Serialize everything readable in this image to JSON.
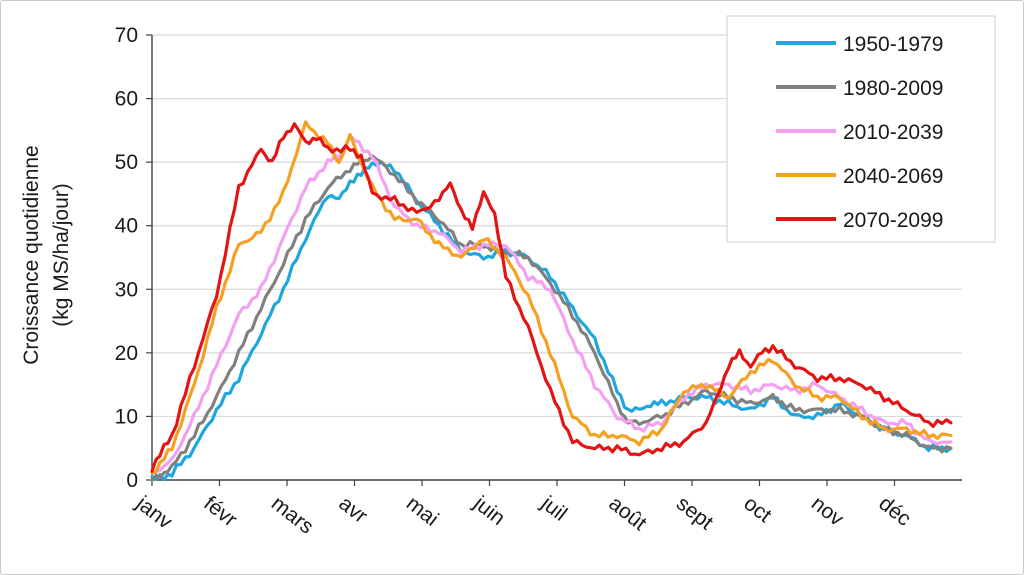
{
  "chart_data": {
    "type": "line",
    "title": "",
    "xlabel": "",
    "ylabel_line1": "Croissance quotidienne",
    "ylabel_line2": "(kg MS/ha/jour)",
    "ylim": [
      0,
      70
    ],
    "yticks": [
      0,
      10,
      20,
      30,
      40,
      50,
      60,
      70
    ],
    "months": [
      "janv",
      "févr",
      "mars",
      "avr",
      "mai",
      "juin",
      "juil",
      "août",
      "sept",
      "oct",
      "nov",
      "déc"
    ],
    "x_unit": "day of year",
    "xlim": [
      1,
      365
    ],
    "grid": "horizontal",
    "legend_position": "top-right",
    "series": [
      {
        "name": "1950-1979",
        "color": "#1ea7dc",
        "x": [
          1,
          10,
          20,
          30,
          40,
          50,
          60,
          70,
          80,
          85,
          90,
          95,
          100,
          110,
          120,
          130,
          140,
          150,
          160,
          170,
          180,
          190,
          200,
          210,
          215,
          220,
          225,
          230,
          240,
          250,
          260,
          270,
          280,
          290,
          300,
          310,
          320,
          330,
          340,
          350,
          360
        ],
        "y": [
          0,
          1,
          5,
          11,
          16,
          23,
          30,
          38,
          45,
          44,
          47,
          48,
          50,
          49,
          44,
          40,
          36,
          35,
          36,
          35,
          32,
          27,
          22,
          14,
          11,
          11,
          12,
          12,
          13,
          13,
          12,
          11,
          13,
          10,
          10,
          12,
          10,
          8,
          7,
          5,
          5
        ]
      },
      {
        "name": "1980-2009",
        "color": "#808080",
        "x": [
          1,
          10,
          20,
          30,
          40,
          50,
          60,
          70,
          80,
          90,
          95,
          100,
          110,
          120,
          130,
          140,
          150,
          155,
          160,
          170,
          180,
          190,
          200,
          210,
          215,
          220,
          230,
          240,
          250,
          260,
          270,
          280,
          290,
          300,
          310,
          320,
          330,
          340,
          350,
          360
        ],
        "y": [
          0,
          2,
          7,
          13,
          20,
          27,
          34,
          41,
          46,
          49,
          50,
          51,
          48,
          44,
          41,
          37,
          37,
          36,
          36,
          35,
          31,
          26,
          20,
          12,
          9,
          9,
          10,
          12,
          14,
          13,
          12,
          13,
          11,
          11,
          11,
          10,
          8,
          7,
          5,
          5
        ]
      },
      {
        "name": "2010-2039",
        "color": "#f4a0f2",
        "x": [
          1,
          10,
          20,
          30,
          40,
          50,
          60,
          70,
          80,
          85,
          90,
          100,
          110,
          120,
          130,
          140,
          150,
          160,
          170,
          180,
          190,
          200,
          210,
          220,
          230,
          240,
          250,
          260,
          270,
          280,
          290,
          300,
          310,
          320,
          330,
          340,
          350,
          360
        ],
        "y": [
          1,
          3,
          10,
          18,
          26,
          30,
          38,
          46,
          50,
          51,
          54,
          51,
          43,
          40,
          39,
          36,
          37,
          37,
          32,
          30,
          22,
          15,
          10,
          8,
          9,
          13,
          15,
          15,
          14,
          15,
          14,
          15,
          13,
          11,
          9,
          9,
          6,
          6
        ]
      },
      {
        "name": "2040-2069",
        "color": "#f5a022",
        "x": [
          1,
          10,
          20,
          30,
          40,
          50,
          60,
          70,
          80,
          85,
          90,
          100,
          110,
          120,
          130,
          140,
          150,
          160,
          170,
          180,
          190,
          200,
          210,
          220,
          230,
          240,
          250,
          260,
          270,
          280,
          290,
          300,
          310,
          320,
          330,
          340,
          350,
          360
        ],
        "y": [
          1,
          5,
          15,
          27,
          37,
          39,
          45,
          56,
          53,
          50,
          54,
          46,
          41,
          41,
          37,
          35,
          38,
          35,
          29,
          20,
          10,
          7,
          7,
          6,
          8,
          14,
          15,
          13,
          17,
          19,
          15,
          13,
          13,
          10,
          8,
          8,
          7,
          7
        ]
      },
      {
        "name": "2070-2099",
        "color": "#e31414",
        "x": [
          1,
          10,
          20,
          30,
          40,
          50,
          55,
          60,
          65,
          70,
          75,
          80,
          90,
          95,
          100,
          110,
          120,
          130,
          135,
          140,
          145,
          150,
          155,
          160,
          170,
          180,
          190,
          200,
          210,
          220,
          230,
          240,
          250,
          255,
          260,
          265,
          270,
          275,
          280,
          290,
          300,
          310,
          320,
          330,
          340,
          350,
          360
        ],
        "y": [
          2,
          7,
          18,
          29,
          46,
          52,
          50,
          54,
          56,
          53,
          54,
          52,
          52,
          51,
          45,
          44,
          42,
          44,
          47,
          42,
          40,
          45,
          42,
          32,
          24,
          14,
          6,
          5,
          5,
          4,
          5,
          6,
          9,
          13,
          18,
          20,
          18,
          20,
          21,
          18,
          16,
          16,
          15,
          13,
          11,
          9,
          9
        ]
      }
    ]
  }
}
